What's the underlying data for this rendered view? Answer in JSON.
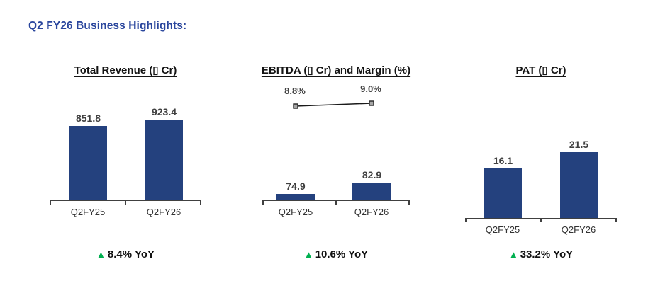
{
  "page": {
    "title": "Q2 FY26 Business Highlights:"
  },
  "icons": {
    "up_triangle": "▲",
    "missing_currency_glyph": "▯"
  },
  "colors": {
    "bar_navy": "#24417E",
    "heading_blue": "#2A469D",
    "positive_green": "#00B050",
    "axis_gray": "#404040"
  },
  "chart_data": [
    {
      "type": "bar",
      "title": "Total Revenue (▯ Cr)",
      "categories": [
        "Q2FY25",
        "Q2FY26"
      ],
      "values": [
        851.8,
        923.4
      ],
      "value_labels": [
        "851.8",
        "923.4"
      ],
      "ylim": [
        0,
        1160
      ],
      "grid": false,
      "legend": "none",
      "yoy_change": "8.4% YoY"
    },
    {
      "type": "bar",
      "title": "EBITDA (▯ Cr) and Margin (%)",
      "categories": [
        "Q2FY25",
        "Q2FY26"
      ],
      "values": [
        74.9,
        82.9
      ],
      "value_labels": [
        "74.9",
        "82.9"
      ],
      "ylim": [
        70,
        145
      ],
      "grid": false,
      "legend": "none",
      "series": [
        {
          "name": "EBITDA",
          "type": "bar",
          "values": [
            74.9,
            82.9
          ]
        },
        {
          "name": "Margin (%)",
          "type": "line",
          "values": [
            8.8,
            9.0
          ]
        }
      ],
      "margin_labels": [
        "8.8%",
        "9.0%"
      ],
      "yoy_change": "10.6% YoY"
    },
    {
      "type": "bar",
      "title": "PAT (▯ Cr)",
      "categories": [
        "Q2FY25",
        "Q2FY26"
      ],
      "values": [
        16.1,
        21.5
      ],
      "value_labels": [
        "16.1",
        "21.5"
      ],
      "ylim": [
        0,
        33
      ],
      "grid": false,
      "legend": "none",
      "yoy_change": "33.2% YoY"
    }
  ]
}
